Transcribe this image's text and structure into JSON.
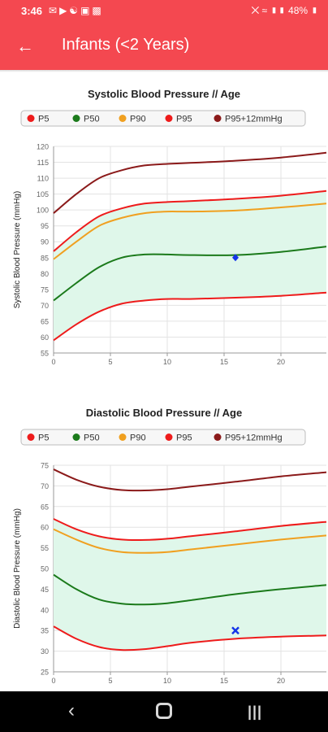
{
  "status_bar": {
    "time": "3:46",
    "battery": "48%",
    "left_icons": [
      "message-icon",
      "youtube-icon",
      "app-icon",
      "image-icon",
      "app-icon"
    ],
    "right_icons": [
      "mute-icon",
      "wifi-icon",
      "signal-icon",
      "battery-icon"
    ]
  },
  "app_bar": {
    "back_icon": "back-arrow-icon",
    "title": "Infants (<2 Years)"
  },
  "colors": {
    "accent": "#f44850",
    "p5": "#ee1b1b",
    "p50": "#1b7a1b",
    "p90": "#f0a020",
    "p95": "#ee1b1b",
    "p95_12": "#8b1a1a",
    "band": "#dff7ea",
    "marker": "#1535e8"
  },
  "chart_data": [
    {
      "type": "line",
      "title": "Systolic Blood Pressure // Age",
      "xlabel": "",
      "ylabel": "Systolic Blood Pressure (mmHg)",
      "xlim": [
        0,
        24
      ],
      "ylim": [
        55,
        120
      ],
      "x_ticks": [
        "0",
        "5",
        "10",
        "15",
        "20"
      ],
      "y_ticks": [
        "55",
        "60",
        "65",
        "70",
        "75",
        "80",
        "85",
        "90",
        "95",
        "100",
        "105",
        "110",
        "115",
        "120"
      ],
      "grid": true,
      "legend_position": "top",
      "band_between": [
        "P5",
        "P95"
      ],
      "series": [
        {
          "name": "P5",
          "x": [
            0,
            2,
            4,
            6,
            8,
            10,
            12,
            16,
            20,
            24
          ],
          "values": [
            59,
            64,
            68,
            70.5,
            71.5,
            72,
            72,
            72.4,
            73,
            74
          ]
        },
        {
          "name": "P50",
          "x": [
            0,
            2,
            4,
            6,
            8,
            10,
            12,
            16,
            20,
            24
          ],
          "values": [
            71.5,
            77,
            82,
            85,
            86,
            86,
            85.8,
            85.8,
            86.8,
            88.5
          ]
        },
        {
          "name": "P90",
          "x": [
            0,
            2,
            4,
            6,
            8,
            10,
            12,
            16,
            20,
            24
          ],
          "values": [
            84.5,
            90,
            95,
            97.5,
            99,
            99.5,
            99.5,
            99.8,
            100.8,
            102
          ]
        },
        {
          "name": "P95",
          "x": [
            0,
            2,
            4,
            6,
            8,
            10,
            12,
            16,
            20,
            24
          ],
          "values": [
            87,
            93,
            98,
            100.5,
            102,
            102.5,
            102.8,
            103.5,
            104.5,
            106
          ]
        },
        {
          "name": "P95+12mmHg",
          "x": [
            0,
            2,
            4,
            6,
            8,
            10,
            12,
            16,
            20,
            24
          ],
          "values": [
            99,
            105,
            110,
            112.5,
            114,
            114.5,
            114.8,
            115.5,
            116.5,
            118
          ]
        }
      ],
      "markers": [
        {
          "x": 16,
          "y": 85,
          "shape": "diamond"
        }
      ]
    },
    {
      "type": "line",
      "title": "Diastolic Blood Pressure // Age",
      "xlabel": "",
      "ylabel": "Diastolic Blood Pressure (mmHg)",
      "xlim": [
        0,
        24
      ],
      "ylim": [
        25,
        75
      ],
      "x_ticks": [
        "0",
        "5",
        "10",
        "15",
        "20"
      ],
      "y_ticks": [
        "25",
        "30",
        "35",
        "40",
        "45",
        "50",
        "55",
        "60",
        "65",
        "70",
        "75"
      ],
      "grid": true,
      "legend_position": "top",
      "band_between": [
        "P5",
        "P95"
      ],
      "series": [
        {
          "name": "P5",
          "x": [
            0,
            2,
            4,
            6,
            8,
            10,
            12,
            16,
            20,
            24
          ],
          "values": [
            36,
            33,
            31,
            30.3,
            30.5,
            31.2,
            32,
            33,
            33.5,
            33.8
          ]
        },
        {
          "name": "P50",
          "x": [
            0,
            2,
            4,
            6,
            8,
            10,
            12,
            16,
            20,
            24
          ],
          "values": [
            48.5,
            45,
            42.5,
            41.5,
            41.3,
            41.6,
            42.3,
            43.8,
            45,
            46
          ]
        },
        {
          "name": "P90",
          "x": [
            0,
            2,
            4,
            6,
            8,
            10,
            12,
            16,
            20,
            24
          ],
          "values": [
            59.5,
            57,
            55,
            54,
            53.8,
            54,
            54.6,
            55.8,
            57,
            58
          ]
        },
        {
          "name": "P95",
          "x": [
            0,
            2,
            4,
            6,
            8,
            10,
            12,
            16,
            20,
            24
          ],
          "values": [
            62,
            59.5,
            57.8,
            57,
            56.9,
            57.2,
            57.8,
            59,
            60.3,
            61.3
          ]
        },
        {
          "name": "P95+12mmHg",
          "x": [
            0,
            2,
            4,
            6,
            8,
            10,
            12,
            16,
            20,
            24
          ],
          "values": [
            74,
            71.5,
            69.8,
            69,
            68.9,
            69.2,
            69.8,
            71,
            72.3,
            73.3
          ]
        }
      ],
      "markers": [
        {
          "x": 16,
          "y": 35,
          "shape": "x"
        }
      ]
    }
  ]
}
